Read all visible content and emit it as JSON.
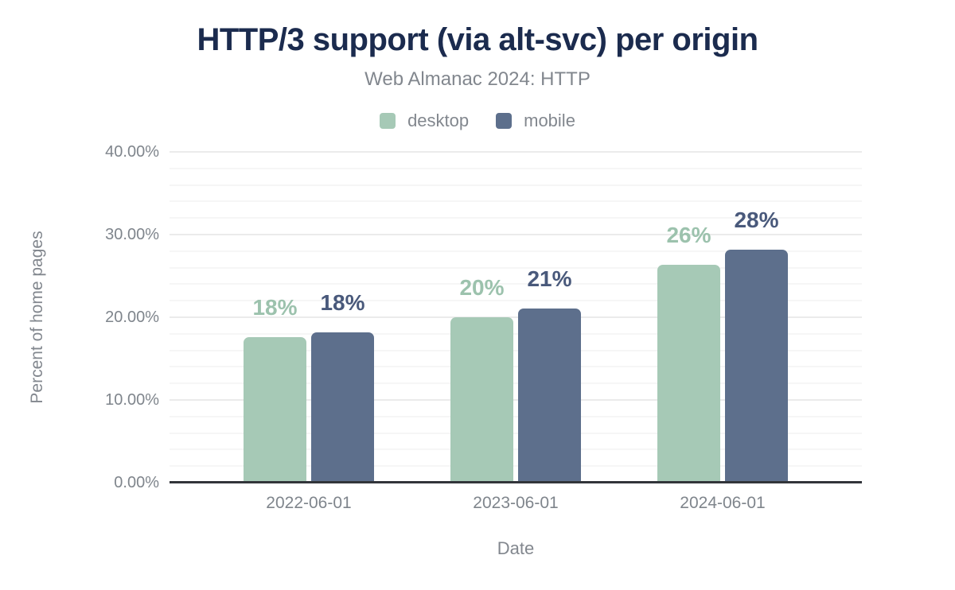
{
  "header": {
    "title": "HTTP/3 support (via alt-svc) per origin",
    "subtitle": "Web Almanac 2024: HTTP"
  },
  "legend": {
    "items": [
      {
        "label": "desktop",
        "color": "#a6c9b6"
      },
      {
        "label": "mobile",
        "color": "#5d6f8c"
      }
    ]
  },
  "colors": {
    "title": "#1b2b4e",
    "muted_text": "#82878e",
    "tick_text": "#7f858c",
    "axis_line": "#32353a",
    "grid_major": "#ebebeb",
    "grid_minor": "#f6f6f6"
  },
  "chart_data": {
    "type": "bar",
    "title": "HTTP/3 support (via alt-svc) per origin",
    "subtitle": "Web Almanac 2024: HTTP",
    "categories": [
      "2022-06-01",
      "2023-06-01",
      "2024-06-01"
    ],
    "series": [
      {
        "name": "desktop",
        "values": [
          17.6,
          20.0,
          26.3
        ],
        "labels": [
          "18%",
          "20%",
          "26%"
        ],
        "color": "#a6c9b6",
        "label_color": "#9cc2ad"
      },
      {
        "name": "mobile",
        "values": [
          18.2,
          21.1,
          28.2
        ],
        "labels": [
          "18%",
          "21%",
          "28%"
        ],
        "color": "#5d6f8c",
        "label_color": "#49597b"
      }
    ],
    "xlabel": "Date",
    "ylabel": "Percent of home pages",
    "ylim": [
      0,
      40
    ],
    "y_major_step": 10,
    "y_minor_step": 2,
    "y_tick_labels": [
      "0.00%",
      "10.00%",
      "20.00%",
      "30.00%",
      "40.00%"
    ],
    "grid": true,
    "legend_position": "top",
    "bar_value_labels_shown": true
  }
}
